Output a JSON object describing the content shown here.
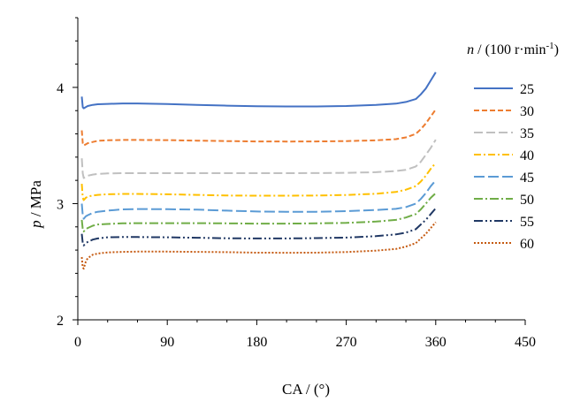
{
  "chart_data": {
    "type": "line",
    "title": "",
    "xlabel": "CA / (°)",
    "ylabel": "p / MPa",
    "ylabel_italic": "p",
    "ylabel_rest": " / MPa",
    "xlim": [
      0,
      450
    ],
    "ylim": [
      2,
      4.6
    ],
    "xticks": [
      "0",
      "90",
      "180",
      "270",
      "360",
      "450"
    ],
    "yticks": [
      "2",
      "3",
      "4"
    ],
    "legend_title": "n / (100 r·min⁻¹)",
    "legend_title_italic": "n",
    "legend_title_rest": " / (100 r·min",
    "legend_title_sup": "-1",
    "legend_title_close": ")",
    "legend_position": "right",
    "x": [
      4,
      5,
      6,
      8,
      10,
      15,
      20,
      30,
      45,
      60,
      90,
      120,
      150,
      180,
      210,
      240,
      270,
      300,
      320,
      330,
      340,
      345,
      350,
      355,
      360
    ],
    "series": [
      {
        "name": "25",
        "color": "#4472C4",
        "dash": "",
        "values": [
          3.92,
          3.83,
          3.82,
          3.83,
          3.84,
          3.85,
          3.855,
          3.858,
          3.862,
          3.862,
          3.857,
          3.85,
          3.843,
          3.838,
          3.836,
          3.836,
          3.84,
          3.85,
          3.86,
          3.875,
          3.9,
          3.94,
          3.99,
          4.06,
          4.13
        ]
      },
      {
        "name": "30",
        "color": "#ED7D31",
        "dash": "6,3",
        "values": [
          3.63,
          3.52,
          3.5,
          3.51,
          3.52,
          3.53,
          3.54,
          3.545,
          3.548,
          3.548,
          3.546,
          3.542,
          3.538,
          3.535,
          3.534,
          3.535,
          3.538,
          3.545,
          3.555,
          3.57,
          3.6,
          3.64,
          3.69,
          3.75,
          3.81
        ]
      },
      {
        "name": "35",
        "color": "#C0C0C0",
        "dash": "10,4",
        "values": [
          3.39,
          3.26,
          3.22,
          3.23,
          3.24,
          3.25,
          3.255,
          3.26,
          3.262,
          3.262,
          3.262,
          3.262,
          3.262,
          3.262,
          3.262,
          3.263,
          3.265,
          3.27,
          3.28,
          3.29,
          3.32,
          3.36,
          3.42,
          3.48,
          3.55
        ]
      },
      {
        "name": "40",
        "color": "#FFC000",
        "dash": "8,3,2,3",
        "values": [
          3.17,
          3.05,
          3.03,
          3.05,
          3.06,
          3.07,
          3.075,
          3.08,
          3.083,
          3.083,
          3.08,
          3.075,
          3.07,
          3.068,
          3.068,
          3.07,
          3.074,
          3.085,
          3.1,
          3.12,
          3.15,
          3.19,
          3.24,
          3.3,
          3.35
        ]
      },
      {
        "name": "45",
        "color": "#5B9BD5",
        "dash": "12,4",
        "values": [
          3.0,
          2.9,
          2.87,
          2.89,
          2.9,
          2.92,
          2.93,
          2.94,
          2.95,
          2.953,
          2.952,
          2.948,
          2.94,
          2.932,
          2.93,
          2.93,
          2.935,
          2.945,
          2.955,
          2.97,
          3.0,
          3.04,
          3.09,
          3.15,
          3.2
        ]
      },
      {
        "name": "50",
        "color": "#70AD47",
        "dash": "10,3,2,3",
        "values": [
          2.86,
          2.78,
          2.76,
          2.78,
          2.79,
          2.81,
          2.82,
          2.825,
          2.83,
          2.832,
          2.832,
          2.832,
          2.83,
          2.828,
          2.828,
          2.83,
          2.834,
          2.845,
          2.86,
          2.88,
          2.91,
          2.95,
          3.0,
          3.05,
          3.09
        ]
      },
      {
        "name": "55",
        "color": "#203864",
        "dash": "10,3,2,3,2,3",
        "values": [
          2.74,
          2.66,
          2.64,
          2.66,
          2.67,
          2.69,
          2.7,
          2.71,
          2.712,
          2.712,
          2.71,
          2.706,
          2.702,
          2.7,
          2.7,
          2.703,
          2.708,
          2.72,
          2.735,
          2.75,
          2.78,
          2.82,
          2.86,
          2.91,
          2.96
        ]
      },
      {
        "name": "60",
        "color": "#C55A11",
        "dash": "2,2",
        "values": [
          2.54,
          2.45,
          2.44,
          2.5,
          2.53,
          2.56,
          2.57,
          2.58,
          2.585,
          2.587,
          2.587,
          2.585,
          2.582,
          2.578,
          2.577,
          2.578,
          2.583,
          2.595,
          2.61,
          2.63,
          2.66,
          2.7,
          2.74,
          2.79,
          2.84
        ]
      }
    ]
  }
}
